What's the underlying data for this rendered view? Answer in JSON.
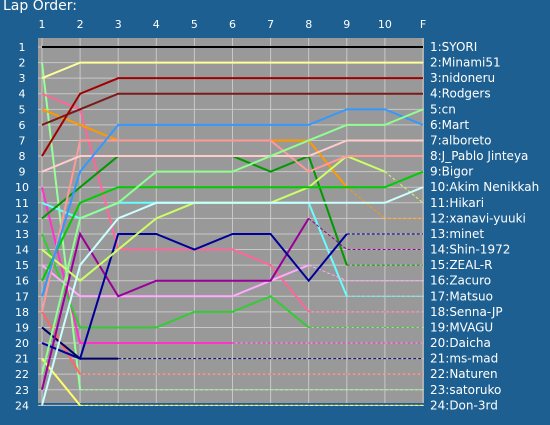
{
  "title": "Lap Order:",
  "chart_data": {
    "type": "line",
    "title": "Lap Order:",
    "x": [
      "1",
      "2",
      "3",
      "4",
      "5",
      "6",
      "7",
      "8",
      "9",
      "10",
      "F"
    ],
    "y_ticks": [
      1,
      2,
      3,
      4,
      5,
      6,
      7,
      8,
      9,
      10,
      11,
      12,
      13,
      14,
      15,
      16,
      17,
      18,
      19,
      20,
      21,
      22,
      23,
      24
    ],
    "ylim": [
      1,
      24
    ],
    "y_inverted": true,
    "grid": true,
    "series": [
      {
        "name": "1:SYORI",
        "color": "#000000",
        "values": [
          1,
          1,
          1,
          1,
          1,
          1,
          1,
          1,
          1,
          1,
          1
        ],
        "dashed_from": null
      },
      {
        "name": "2:Minami51",
        "color": "#ffff99",
        "values": [
          3,
          2,
          2,
          2,
          2,
          2,
          2,
          2,
          2,
          2,
          2
        ],
        "dashed_from": null
      },
      {
        "name": "3:nidoneru",
        "color": "#a00000",
        "values": [
          8,
          4,
          3,
          3,
          3,
          3,
          3,
          3,
          3,
          3,
          3
        ],
        "dashed_from": null
      },
      {
        "name": "4:Rodgers",
        "color": "#7b1a1a",
        "values": [
          6,
          5,
          4,
          4,
          4,
          4,
          4,
          4,
          4,
          4,
          4
        ],
        "dashed_from": null
      },
      {
        "name": "5:cn",
        "color": "#90ff90",
        "values": [
          22,
          12,
          11,
          9,
          9,
          9,
          8,
          7,
          6,
          6,
          5
        ],
        "dashed_from": null
      },
      {
        "name": "6:Mart",
        "color": "#3399ff",
        "values": [
          17,
          9,
          6,
          6,
          6,
          6,
          6,
          6,
          5,
          5,
          6
        ],
        "dashed_from": null
      },
      {
        "name": "7:alboreto",
        "color": "#ffcccc",
        "values": [
          9,
          8,
          8,
          8,
          8,
          8,
          8,
          8,
          7,
          7,
          7
        ],
        "dashed_from": null
      },
      {
        "name": "8:J_Pablo Jinteya",
        "color": "#ff9999",
        "values": [
          18,
          7,
          7,
          7,
          7,
          7,
          7,
          9,
          8,
          8,
          8
        ],
        "dashed_from": null
      },
      {
        "name": "9:Bigor",
        "color": "#00cc00",
        "values": [
          16,
          11,
          10,
          10,
          10,
          10,
          10,
          10,
          10,
          10,
          9
        ],
        "dashed_from": null
      },
      {
        "name": "10:Akim Nenikkah",
        "color": "#ccffff",
        "values": [
          24,
          15,
          12,
          11,
          11,
          11,
          11,
          11,
          11,
          11,
          10
        ],
        "dashed_from": null
      },
      {
        "name": "11:Hikari",
        "color": "#ccff66",
        "values": [
          14,
          16,
          14,
          12,
          11,
          11,
          11,
          10,
          8,
          9,
          11
        ],
        "dashed_from": 9
      },
      {
        "name": "12:xanavi-yuuki",
        "color": "#ff9900",
        "values": [
          5,
          6,
          7,
          7,
          7,
          7,
          7,
          7,
          10,
          12,
          12
        ],
        "dashed_from": 8
      },
      {
        "name": "13:minet",
        "color": "#000099",
        "values": [
          20,
          21,
          13,
          13,
          14,
          13,
          13,
          16,
          13,
          13,
          13
        ],
        "dashed_from": 8
      },
      {
        "name": "14:Shin-1972",
        "color": "#990099",
        "values": [
          23,
          13,
          17,
          16,
          16,
          16,
          16,
          12,
          14,
          14,
          14
        ],
        "dashed_from": 7
      },
      {
        "name": "15:ZEAL-R",
        "color": "#009900",
        "values": [
          12,
          10,
          8,
          8,
          8,
          8,
          9,
          8,
          15,
          15,
          15
        ],
        "dashed_from": 8
      },
      {
        "name": "16:Zacuro",
        "color": "#ffaaff",
        "values": [
          15,
          17,
          17,
          17,
          17,
          17,
          16,
          15,
          16,
          16,
          16
        ],
        "dashed_from": 7
      },
      {
        "name": "17:Matsuo",
        "color": "#66ffff",
        "values": [
          11,
          12,
          11,
          11,
          11,
          11,
          11,
          11,
          17,
          17,
          17
        ],
        "dashed_from": 8
      },
      {
        "name": "18:Senna-JP",
        "color": "#ff6699",
        "values": [
          4,
          5,
          14,
          14,
          14,
          14,
          15,
          18,
          18,
          18,
          18
        ],
        "dashed_from": 7
      },
      {
        "name": "19:MVAGU",
        "color": "#33cc33",
        "values": [
          13,
          19,
          19,
          19,
          18,
          18,
          17,
          19,
          19,
          19,
          19
        ],
        "dashed_from": 7
      },
      {
        "name": "20:Daicha",
        "color": "#ff33cc",
        "values": [
          10,
          20,
          20,
          20,
          20,
          20,
          20,
          20,
          20,
          20,
          20
        ],
        "dashed_from": 5
      },
      {
        "name": "21:ms-mad",
        "color": "#000066",
        "values": [
          19,
          21,
          21,
          21,
          21,
          21,
          21,
          21,
          21,
          21,
          21
        ],
        "dashed_from": 2
      },
      {
        "name": "22:Naturen",
        "color": "#ff6666",
        "values": [
          18,
          22,
          22,
          22,
          22,
          22,
          22,
          22,
          22,
          22,
          22
        ],
        "dashed_from": 1
      },
      {
        "name": "23:satoruko",
        "color": "#99ff99",
        "values": [
          2,
          23,
          23,
          23,
          23,
          23,
          23,
          23,
          23,
          23,
          23
        ],
        "dashed_from": 1
      },
      {
        "name": "24:Don-3rd",
        "color": "#ffff66",
        "values": [
          21,
          24,
          24,
          24,
          24,
          24,
          24,
          24,
          24,
          24,
          24
        ],
        "dashed_from": 1
      }
    ]
  }
}
